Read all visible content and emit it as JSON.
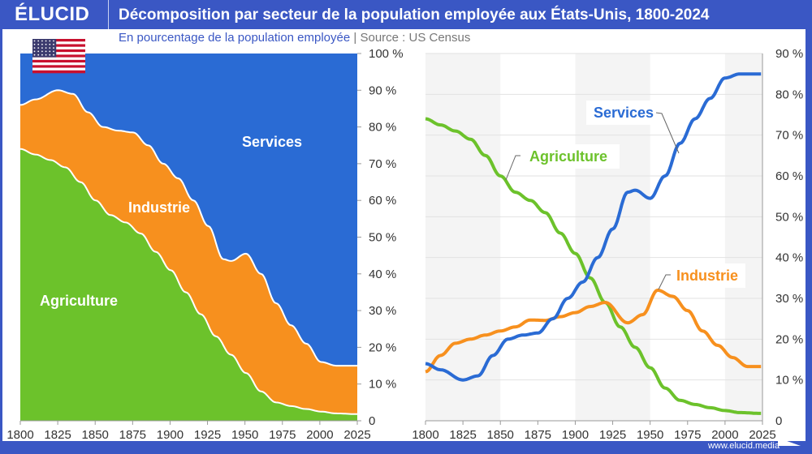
{
  "header": {
    "logo": "ÉLUCID",
    "title": "Décomposition par secteur de la population employée aux États-Unis, 1800-2024"
  },
  "subtitle": {
    "text": "En pourcentage de la population employée",
    "separator": "|",
    "source": "Source : US Census"
  },
  "footer": {
    "url": "www.elucid.media"
  },
  "colors": {
    "brand": "#3a57c4",
    "services": "#2a6bd4",
    "industrie": "#f7901e",
    "agriculture": "#6cc22b"
  },
  "icons": {
    "flag": "us-flag-icon"
  },
  "chart_data": [
    {
      "type": "area",
      "stacked": true,
      "x_ticks": [
        "1800",
        "1825",
        "1850",
        "1875",
        "1900",
        "1925",
        "1950",
        "1975",
        "2000",
        "2025"
      ],
      "y_ticks": [
        "0",
        "10 %",
        "20 %",
        "30 %",
        "40 %",
        "50 %",
        "60 %",
        "70 %",
        "80 %",
        "90 %",
        "100 %"
      ],
      "xlim": [
        1800,
        2025
      ],
      "ylim": [
        0,
        100
      ],
      "y_axis": "right",
      "series": [
        {
          "name": "Agriculture",
          "key": "agriculture"
        },
        {
          "name": "Industrie",
          "key": "industrie"
        },
        {
          "name": "Services",
          "key": "services"
        }
      ]
    },
    {
      "type": "line",
      "x_ticks": [
        "1800",
        "1825",
        "1850",
        "1875",
        "1900",
        "1925",
        "1950",
        "1975",
        "2000",
        "2025"
      ],
      "y_ticks": [
        "0",
        "10 %",
        "20 %",
        "30 %",
        "40 %",
        "50 %",
        "60 %",
        "70 %",
        "80 %",
        "90 %"
      ],
      "xlim": [
        1800,
        2025
      ],
      "ylim": [
        0,
        90
      ],
      "y_axis": "right",
      "grid": true,
      "series": [
        {
          "name": "Agriculture",
          "key": "agriculture"
        },
        {
          "name": "Industrie",
          "key": "industrie"
        },
        {
          "name": "Services",
          "key": "services"
        }
      ]
    }
  ],
  "data": {
    "agriculture": {
      "x": [
        1800,
        1810,
        1820,
        1830,
        1840,
        1850,
        1860,
        1870,
        1880,
        1890,
        1900,
        1910,
        1920,
        1930,
        1940,
        1950,
        1960,
        1970,
        1980,
        1990,
        2000,
        2010,
        2024
      ],
      "y": [
        74,
        72.5,
        71,
        69,
        65,
        60,
        56,
        54,
        51,
        46,
        41,
        35,
        29,
        23,
        18,
        13,
        8,
        5,
        4,
        3.2,
        2.5,
        2,
        1.8
      ]
    },
    "industrie": {
      "x": [
        1800,
        1810,
        1820,
        1830,
        1840,
        1850,
        1860,
        1870,
        1880,
        1890,
        1900,
        1910,
        1920,
        1935,
        1945,
        1955,
        1965,
        1975,
        1985,
        1995,
        2005,
        2015,
        2024
      ],
      "y": [
        12,
        16,
        19,
        20,
        21,
        22,
        23,
        24.7,
        24.6,
        25.5,
        26.5,
        28,
        29,
        24,
        26,
        32,
        30.5,
        27,
        22,
        18.5,
        15.5,
        13.3,
        13.3
      ]
    },
    "services": {
      "x": [
        1800,
        1810,
        1825,
        1835,
        1845,
        1855,
        1865,
        1875,
        1885,
        1895,
        1905,
        1915,
        1925,
        1935,
        1940,
        1950,
        1960,
        1970,
        1980,
        1990,
        2000,
        2010,
        2015,
        2024
      ],
      "y": [
        14,
        12.5,
        10,
        11,
        16,
        20,
        21,
        21.5,
        25,
        30,
        34,
        40,
        47,
        56,
        56.5,
        54.5,
        60,
        68,
        74,
        79,
        84,
        85,
        85,
        85
      ]
    }
  }
}
